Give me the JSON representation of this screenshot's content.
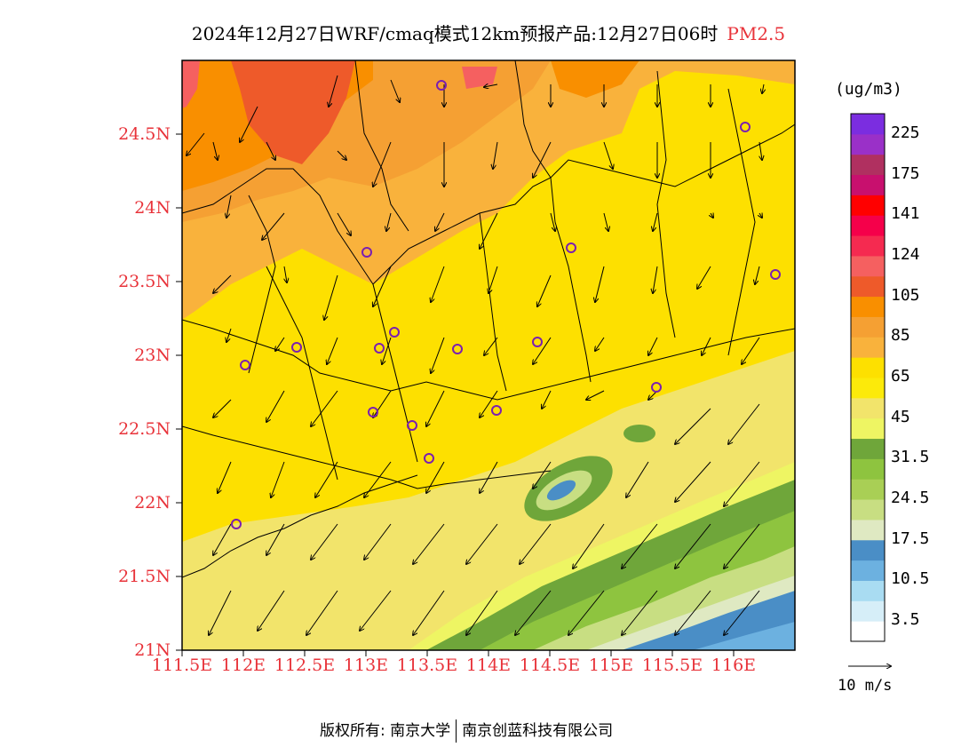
{
  "title": {
    "main": "2024年12月27日WRF/cmaq模式12km预报产品:12月27日06时",
    "pollutant": "PM2.5"
  },
  "axes": {
    "lat_labels": [
      "21N",
      "21.5N",
      "22N",
      "22.5N",
      "23N",
      "23.5N",
      "24N",
      "24.5N"
    ],
    "lon_labels": [
      "111.5E",
      "112E",
      "112.5E",
      "113E",
      "113.5E",
      "114E",
      "114.5E",
      "115E",
      "115.5E",
      "116E"
    ],
    "lat_range": [
      21,
      25
    ],
    "lon_range": [
      111.5,
      116.5
    ],
    "label_color": "#e8333a"
  },
  "legend": {
    "unit": "(ug/m3)",
    "labels": [
      "225",
      "175",
      "141",
      "124",
      "105",
      "85",
      "65",
      "45",
      "31.5",
      "24.5",
      "17.5",
      "10.5",
      "3.5"
    ],
    "colors": [
      "#ffffff",
      "#d6eef8",
      "#a9dcf2",
      "#6cb1e0",
      "#4a8ec6",
      "#dfe9c2",
      "#c8de82",
      "#a9cf55",
      "#8ec43f",
      "#6fa63a",
      "#eef563",
      "#f2e46b",
      "#fcea0a",
      "#fde000",
      "#f9b23c",
      "#f5a033",
      "#f98f00",
      "#ee5a2a",
      "#f56060",
      "#f52a50",
      "#f5004a",
      "#ff0000",
      "#c8106e",
      "#b03060",
      "#9a30c8",
      "#7b2de0"
    ]
  },
  "wind": {
    "reference_label": "10 m/s"
  },
  "footer": {
    "copyright": "版权所有: 南京大学",
    "company": "南京创蓝科技有限公司"
  }
}
